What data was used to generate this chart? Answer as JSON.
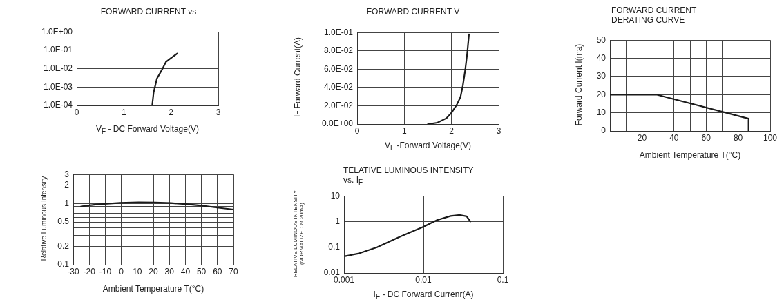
{
  "chart_data": [
    {
      "type": "line",
      "title": "FORWARD CURRENT vs",
      "xlabel": "V$_{F}$ - DC Forward Voltage(V)",
      "log": "y",
      "grid": true,
      "marker": "none",
      "line_style": "solid",
      "xlim": [
        0,
        3
      ],
      "xticks": [
        0,
        1,
        2,
        3
      ],
      "ylim": [
        0.0001,
        1
      ],
      "yticks": [
        {
          "value": 0.0001,
          "label": "1.0E-04"
        },
        {
          "value": 0.001,
          "label": "1.0E-03"
        },
        {
          "value": 0.01,
          "label": "1.0E-02"
        },
        {
          "value": 0.1,
          "label": "1.0E-01"
        },
        {
          "value": 1,
          "label": "1.0E+00"
        }
      ],
      "series": [
        {
          "color": "#1a1a1a",
          "x": [
            1.6,
            1.63,
            1.7,
            1.82,
            1.89,
            1.99,
            2.13
          ],
          "values": [
            0.0001,
            0.0005,
            0.0029,
            0.01,
            0.023,
            0.036,
            0.066
          ]
        }
      ]
    },
    {
      "type": "line",
      "title": "FORWARD CURRENT V",
      "xlabel": "V$_{F}$ -Forward Voltage(V)",
      "ylabel": "I$_{F}$ Forward Current(A)",
      "grid": true,
      "marker": "none",
      "line_style": "solid",
      "xlim": [
        0,
        3
      ],
      "xticks": [
        0,
        1,
        2,
        3
      ],
      "ylim": [
        0,
        0.1
      ],
      "yticks": [
        {
          "value": 0,
          "label": "0.0E+00"
        },
        {
          "value": 0.02,
          "label": "2.0E-02"
        },
        {
          "value": 0.04,
          "label": "4.0E-02"
        },
        {
          "value": 0.06,
          "label": "6.0E-02"
        },
        {
          "value": 0.08,
          "label": "8.0E-02"
        },
        {
          "value": 0.1,
          "label": "1.0E-01"
        }
      ],
      "series": [
        {
          "color": "#1a1a1a",
          "x": [
            1.5,
            1.7,
            1.89,
            2.0,
            2.11,
            2.19,
            2.24,
            2.29,
            2.33,
            2.37
          ],
          "values": [
            0,
            0.0015,
            0.0063,
            0.0124,
            0.021,
            0.0295,
            0.042,
            0.059,
            0.076,
            0.098
          ]
        }
      ]
    },
    {
      "type": "line",
      "title": "FORWARD CURRENT\nDERATING CURVE",
      "xlabel": "Ambient Temperature T(°C)",
      "ylabel": "Forward Current I(ma)",
      "grid": true,
      "marker": "none",
      "line_style": "solid",
      "xlim": [
        0,
        100
      ],
      "xticks": [
        {
          "value": 0,
          "label": null
        },
        {
          "value": 10,
          "label": null
        },
        20,
        {
          "value": 30,
          "label": null
        },
        40,
        {
          "value": 50,
          "label": null
        },
        60,
        {
          "value": 70,
          "label": null
        },
        80,
        {
          "value": 90,
          "label": null
        },
        100
      ],
      "ylim": [
        0,
        50
      ],
      "yticks": [
        0,
        10,
        20,
        30,
        40,
        50
      ],
      "series": [
        {
          "color": "#1a1a1a",
          "x": [
            0,
            29,
            86.5,
            86.5
          ],
          "values": [
            20,
            20,
            6.8,
            0
          ]
        }
      ]
    },
    {
      "type": "line",
      "xlabel": "Ambient Temperature T(°C)",
      "ylabel": "Relative Luminous Intensity",
      "log": "y",
      "grid": true,
      "marker": "none",
      "line_style": "solid",
      "xlim": [
        -30,
        70
      ],
      "xticks": [
        -30,
        -20,
        -10,
        0,
        10,
        20,
        30,
        40,
        50,
        60,
        70
      ],
      "ylim": [
        0.1,
        3
      ],
      "yticks": [
        0.1,
        0.2,
        {
          "value": 0.3,
          "label": null
        },
        {
          "value": 0.4,
          "label": null
        },
        0.5,
        {
          "value": 0.6,
          "label": null
        },
        {
          "value": 0.7,
          "label": null
        },
        {
          "value": 0.8,
          "label": null
        },
        {
          "value": 0.9,
          "label": null
        },
        1,
        2,
        3
      ],
      "series": [
        {
          "color": "#1a1a1a",
          "x": [
            -25.1,
            -15.3,
            -0.8,
            10.8,
            20.9,
            31,
            42.5,
            51.2,
            59.9,
            70
          ],
          "values": [
            0.9,
            0.97,
            1.03,
            1.05,
            1.04,
            1.02,
            0.97,
            0.92,
            0.86,
            0.8
          ]
        }
      ]
    },
    {
      "type": "line",
      "title": "TELATIVE LUMINOUS INTENSITY\nvs. I$_{F}$",
      "xlabel": "I$_{F}$ - DC Forward Currenr(A)",
      "ylabel": "RELATIVE LUMINOUS INTENSITY\n(NORMALIZED at 20mA)",
      "log": "xy",
      "grid": true,
      "marker": "none",
      "line_style": "solid",
      "xlim": [
        0.001,
        0.1
      ],
      "xticks": [
        0.001,
        0.01,
        0.1
      ],
      "ylim": [
        0.01,
        10
      ],
      "yticks": [
        0.01,
        0.1,
        1,
        10
      ],
      "series": [
        {
          "color": "#1a1a1a",
          "x": [
            0.00103,
            0.00155,
            0.0026,
            0.0051,
            0.01,
            0.0149,
            0.022,
            0.029,
            0.035,
            0.039
          ],
          "values": [
            0.045,
            0.058,
            0.1,
            0.26,
            0.63,
            1.15,
            1.65,
            1.8,
            1.6,
            1.0
          ]
        }
      ]
    }
  ]
}
